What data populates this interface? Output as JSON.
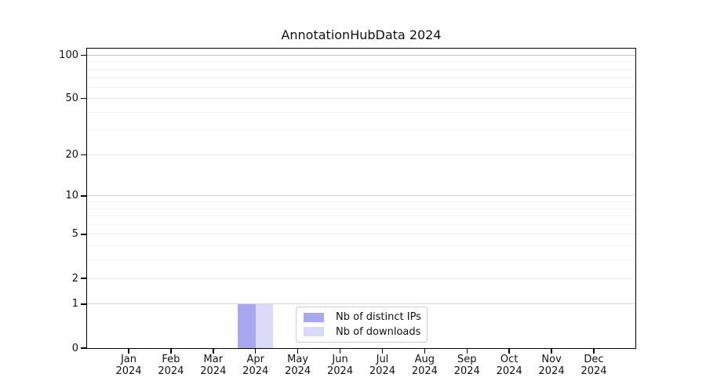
{
  "chart_data": {
    "type": "bar",
    "title": "AnnotationHubData 2024",
    "categories": [
      "Jan",
      "Feb",
      "Mar",
      "Apr",
      "May",
      "Jun",
      "Jul",
      "Aug",
      "Sep",
      "Oct",
      "Nov",
      "Dec"
    ],
    "category_year": "2024",
    "series": [
      {
        "name": "Nb of distinct IPs",
        "color": "#a8a8f0",
        "values": [
          0,
          0,
          0,
          1,
          0,
          0,
          0,
          0,
          0,
          0,
          0,
          0
        ]
      },
      {
        "name": "Nb of downloads",
        "color": "#dadaf8",
        "values": [
          0,
          0,
          0,
          1,
          0,
          0,
          0,
          0,
          0,
          0,
          0,
          0
        ]
      }
    ],
    "y_scale": "log10(value+1)",
    "ylim": [
      0,
      111
    ],
    "y_major_ticks": [
      0,
      1,
      2,
      5,
      10,
      20,
      50,
      100
    ],
    "y_minor_ticks": [
      3,
      4,
      6,
      7,
      8,
      9,
      30,
      40,
      60,
      70,
      80,
      90
    ],
    "grid": {
      "minor": "#f2f2f2",
      "major": "#e9e9e9",
      "decade": "#d8d8d8",
      "top": "#c2c2c2"
    },
    "legend": {
      "position": "bottom-center"
    },
    "axis_color": "#000000",
    "background": "#ffffff"
  }
}
